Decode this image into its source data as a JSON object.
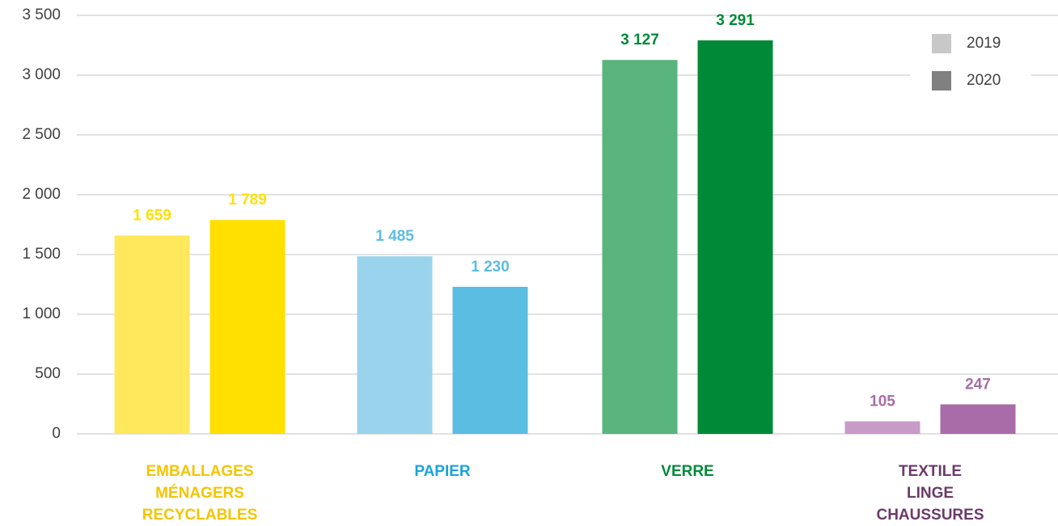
{
  "chart_data": {
    "type": "bar",
    "categories": [
      "EMBALLAGES\nMÉNAGERS\nRECYCLABLES",
      "PAPIER",
      "VERRE",
      "TEXTILE\nLINGE\nCHAUSSURES"
    ],
    "category_colors": [
      "#f5c400",
      "#1aa3d9",
      "#008a3a",
      "#6b3a6b"
    ],
    "series": [
      {
        "name": "2019",
        "color": "#c8c8c8",
        "bar_colors": [
          "#ffe85c",
          "#99d3ec",
          "#5ab47d",
          "#c89ac8"
        ],
        "values": [
          1659,
          1485,
          3127,
          105
        ],
        "value_labels": [
          "1 659",
          "1 485",
          "3 127",
          "105"
        ]
      },
      {
        "name": "2020",
        "color": "#808080",
        "bar_colors": [
          "#ffe000",
          "#5bbde2",
          "#008a37",
          "#a96ca8"
        ],
        "values": [
          1789,
          1230,
          3291,
          247
        ],
        "value_labels": [
          "1 789",
          "1 230",
          "3 291",
          "247"
        ]
      }
    ],
    "ylim": [
      0,
      3500
    ],
    "yticks": [
      0,
      500,
      {
        "value": 1000,
        "label": "1 000"
      },
      {
        "value": 1500,
        "label": "1 500"
      },
      {
        "value": 2000,
        "label": "2 000"
      },
      {
        "value": 2500,
        "label": "2 500"
      },
      {
        "value": 3000,
        "label": "3 000"
      },
      {
        "value": 3500,
        "label": "3 500"
      }
    ],
    "grid": true,
    "legend": "upper right"
  }
}
